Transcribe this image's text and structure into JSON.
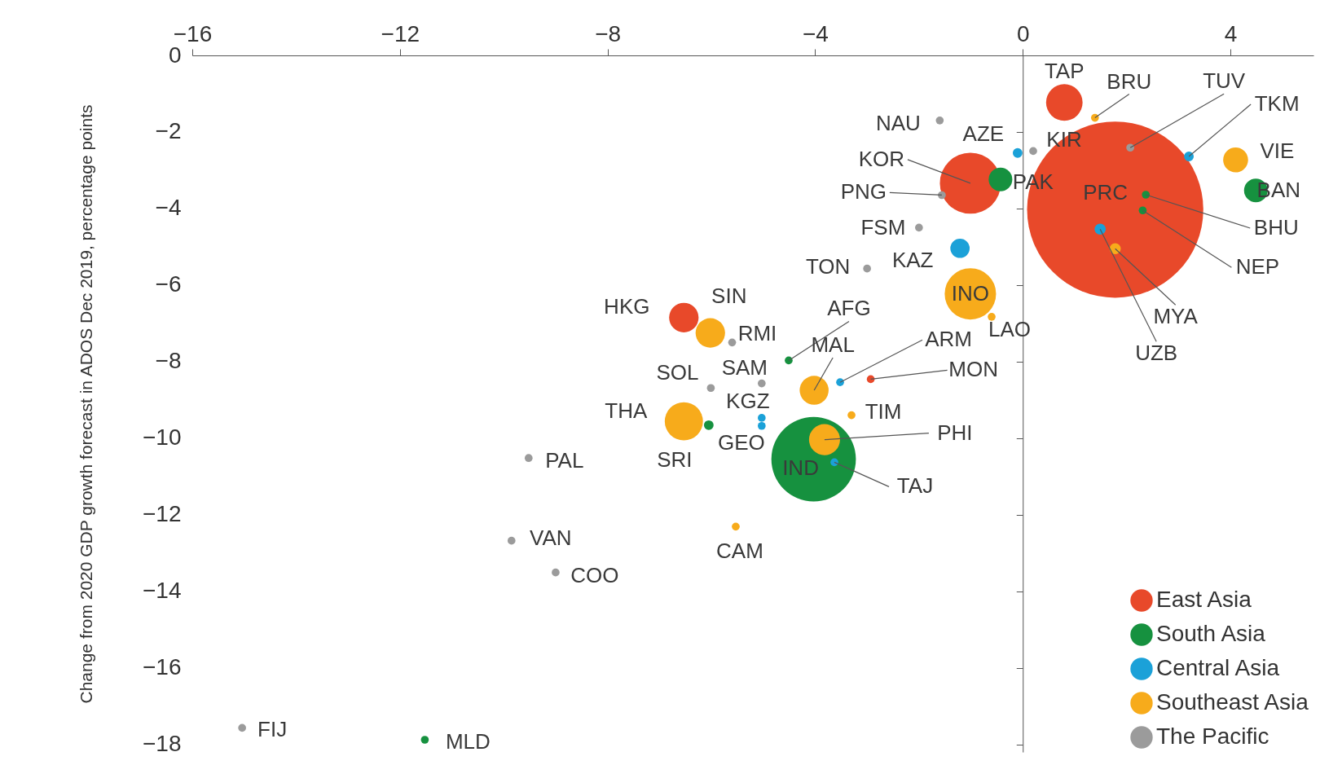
{
  "chart_data": {
    "type": "bubble",
    "ylabel": "Change from 2020 GDP growth forecast in ADOS Dec 2019, percentage points",
    "xlim": [
      -16,
      5.6
    ],
    "xticks": [
      -16,
      -12,
      -8,
      -4,
      0,
      4
    ],
    "ylim": [
      -18.2,
      0
    ],
    "yticks": [
      0,
      -2,
      -4,
      -6,
      -8,
      -10,
      -12,
      -14,
      -16,
      -18
    ],
    "legend": "bottom right",
    "marker": "circle",
    "series": [
      {
        "name": "East Asia",
        "color": "#e8492a",
        "x": [
          0.8,
          -1.01,
          1.78,
          -6.53,
          -2.93
        ],
        "values": [
          -1.23,
          -3.34,
          -4.03,
          -6.85,
          -8.46
        ],
        "sizes": [
          0.043,
          0.12,
          1,
          0.028,
          0.002
        ]
      },
      {
        "name": "South Asia",
        "color": "#16913f",
        "x": [
          -0.43,
          4.49,
          2.31,
          2.37,
          -4.03,
          -6.05,
          -4.51,
          -11.52
        ],
        "values": [
          -3.24,
          -3.53,
          -4.05,
          -3.64,
          -10.55,
          -9.66,
          -7.97,
          -17.88
        ],
        "sizes": [
          0.018,
          0.018,
          0.002,
          0.002,
          0.23,
          0.003,
          0.002,
          0.002
        ]
      },
      {
        "name": "Central Asia",
        "color": "#1ba1d8",
        "x": [
          3.2,
          -0.1,
          1.49,
          -1.21,
          -3.52,
          -5.03,
          -5.03,
          -3.63
        ],
        "values": [
          -2.64,
          -2.55,
          -4.54,
          -5.04,
          -8.54,
          -9.47,
          -9.68,
          -10.63
        ],
        "sizes": [
          0.003,
          0.003,
          0.004,
          0.012,
          0.002,
          0.002,
          0.002,
          0.002
        ]
      },
      {
        "name": "Southeast Asia",
        "color": "#f7ab1b",
        "x": [
          1.39,
          4.1,
          1.78,
          -1.01,
          -0.6,
          -6.02,
          -4.02,
          -6.53,
          -3.82,
          -5.53,
          -3.3
        ],
        "values": [
          -1.63,
          -2.73,
          -5.05,
          -6.23,
          -6.83,
          -7.25,
          -8.75,
          -9.56,
          -10.04,
          -12.31,
          -9.4
        ],
        "sizes": [
          0.002,
          0.02,
          0.004,
          0.085,
          0.002,
          0.028,
          0.027,
          0.047,
          0.031,
          0.002,
          0.002
        ]
      },
      {
        "name": "The Pacific",
        "color": "#9b9b9b",
        "x": [
          2.07,
          0.2,
          -1.6,
          -1.56,
          -2.0,
          -3.0,
          -5.6,
          -6.01,
          -5.03,
          -9.52,
          -9.85,
          -9.0,
          -15.04
        ],
        "values": [
          -2.41,
          -2.5,
          -1.7,
          -3.65,
          -4.5,
          -5.57,
          -7.5,
          -8.69,
          -8.57,
          -10.52,
          -12.68,
          -13.51,
          -17.57
        ],
        "sizes": [
          0.002,
          0.002,
          0.002,
          0.002,
          0.002,
          0.002,
          0.002,
          0.002,
          0.002,
          0.002,
          0.002,
          0.002,
          0.002
        ]
      }
    ],
    "annotations": [
      {
        "text": "TAP",
        "x": 0.8,
        "y": -1.23
      },
      {
        "text": "KOR",
        "x": -1.01,
        "y": -3.34
      },
      {
        "text": "PRC",
        "x": 1.78,
        "y": -4.03
      },
      {
        "text": "HKG",
        "x": -6.53,
        "y": -6.85
      },
      {
        "text": "MON",
        "x": -2.93,
        "y": -8.46
      },
      {
        "text": "PAK",
        "x": -0.43,
        "y": -3.24
      },
      {
        "text": "BAN",
        "x": 4.49,
        "y": -3.53
      },
      {
        "text": "NEP",
        "x": 2.31,
        "y": -4.05
      },
      {
        "text": "BHU",
        "x": 2.37,
        "y": -3.64
      },
      {
        "text": "IND",
        "x": -4.03,
        "y": -10.55
      },
      {
        "text": "SRI",
        "x": -6.05,
        "y": -9.66
      },
      {
        "text": "AFG",
        "x": -4.51,
        "y": -7.97
      },
      {
        "text": "MLD",
        "x": -11.52,
        "y": -17.88
      },
      {
        "text": "TKM",
        "x": 3.2,
        "y": -2.64
      },
      {
        "text": "AZE",
        "x": -0.1,
        "y": -2.55
      },
      {
        "text": "UZB",
        "x": 1.49,
        "y": -4.54
      },
      {
        "text": "KAZ",
        "x": -1.21,
        "y": -5.04
      },
      {
        "text": "ARM",
        "x": -3.52,
        "y": -8.54
      },
      {
        "text": "KGZ",
        "x": -5.03,
        "y": -9.47
      },
      {
        "text": "GEO",
        "x": -5.03,
        "y": -9.68
      },
      {
        "text": "TAJ",
        "x": -3.63,
        "y": -10.63
      },
      {
        "text": "BRU",
        "x": 1.39,
        "y": -1.63
      },
      {
        "text": "VIE",
        "x": 4.1,
        "y": -2.73
      },
      {
        "text": "MYA",
        "x": 1.78,
        "y": -5.05
      },
      {
        "text": "INO",
        "x": -1.01,
        "y": -6.23
      },
      {
        "text": "LAO",
        "x": -0.6,
        "y": -6.83
      },
      {
        "text": "SIN",
        "x": -6.02,
        "y": -7.25
      },
      {
        "text": "MAL",
        "x": -4.02,
        "y": -8.75
      },
      {
        "text": "THA",
        "x": -6.53,
        "y": -9.56
      },
      {
        "text": "PHI",
        "x": -3.82,
        "y": -10.04
      },
      {
        "text": "CAM",
        "x": -5.53,
        "y": -12.31
      },
      {
        "text": "TIM",
        "x": -3.3,
        "y": -9.4
      },
      {
        "text": "TUV",
        "x": 2.07,
        "y": -2.41
      },
      {
        "text": "KIR",
        "x": 0.2,
        "y": -2.5
      },
      {
        "text": "NAU",
        "x": -1.6,
        "y": -1.7
      },
      {
        "text": "PNG",
        "x": -1.56,
        "y": -3.65
      },
      {
        "text": "FSM",
        "x": -2.0,
        "y": -4.5
      },
      {
        "text": "TON",
        "x": -3.0,
        "y": -5.57
      },
      {
        "text": "RMI",
        "x": -5.6,
        "y": -7.5
      },
      {
        "text": "SOL",
        "x": -6.01,
        "y": -8.69
      },
      {
        "text": "SAM",
        "x": -5.03,
        "y": -8.57
      },
      {
        "text": "PAL",
        "x": -9.52,
        "y": -10.52
      },
      {
        "text": "VAN",
        "x": -9.85,
        "y": -12.68
      },
      {
        "text": "COO",
        "x": -9.0,
        "y": -13.51
      },
      {
        "text": "FIJ",
        "x": -15.04,
        "y": -17.57
      }
    ]
  }
}
